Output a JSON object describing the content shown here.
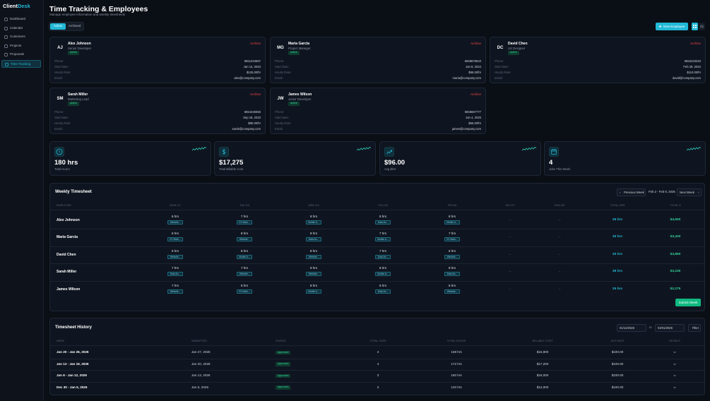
{
  "sidebar": {
    "brand_primary": "Client",
    "brand_accent": "Desk",
    "nav": [
      {
        "label": "Dashboard",
        "active": false
      },
      {
        "label": "Calendar",
        "active": false
      },
      {
        "label": "Customers",
        "active": false
      },
      {
        "label": "Projects",
        "active": false
      },
      {
        "label": "Proposals",
        "active": false
      },
      {
        "label": "Time Tracking",
        "active": true
      }
    ]
  },
  "header": {
    "title": "Time Tracking & Employees",
    "subtitle": "Manage employee information and weekly timesheets",
    "tabs": [
      "Active",
      "Archived"
    ],
    "new_button": "New Employee"
  },
  "employees": {
    "field_labels": {
      "phone": "Phone:",
      "start_date": "Start Date:",
      "hourly_rate": "Hourly Rate:",
      "email": "Email:"
    },
    "archive_label": "Archive",
    "list": [
      {
        "initials": "AJ",
        "name": "Alex Johnson",
        "role": "Senior Developer",
        "status": "active",
        "phone": "5551234567",
        "start_date": "Jan 14, 2023",
        "hourly_rate": "$125.00/hr",
        "email": "alex@company.com"
      },
      {
        "initials": "MG",
        "name": "Maria Garcia",
        "role": "Project Manager",
        "status": "active",
        "phone": "5559876543",
        "start_date": "Jan 8, 2024",
        "hourly_rate": "$95.00/hr",
        "email": "maria@company.com"
      },
      {
        "initials": "DC",
        "name": "David Chen",
        "role": "UX Designer",
        "status": "active",
        "phone": "5552223333",
        "start_date": "Feb 29, 2024",
        "hourly_rate": "$110.00/hr",
        "email": "david@company.com"
      },
      {
        "initials": "SM",
        "name": "Sarah Miller",
        "role": "Marketing Lead",
        "status": "active",
        "phone": "5554445555",
        "start_date": "Sep 18, 2023",
        "hourly_rate": "$85.00/hr",
        "email": "sarah@company.com"
      },
      {
        "initials": "JW",
        "name": "James Wilson",
        "role": "Junior Developer",
        "status": "active",
        "phone": "5556667777",
        "start_date": "Jan 4, 2025",
        "hourly_rate": "$65.00/hr",
        "email": "james@company.com"
      }
    ]
  },
  "stats": [
    {
      "value": "180 hrs",
      "label": "Total Hours"
    },
    {
      "value": "$17,275",
      "label": "Total Billable Cost"
    },
    {
      "value": "$96.00",
      "label": "Avg $/Hr"
    },
    {
      "value": "4",
      "label": "Jobs This Week"
    }
  ],
  "weekly": {
    "title": "Weekly Timesheet",
    "prev": "Previous Week",
    "range": "Feb 2 - Feb 8, 2026",
    "next": "Next Week",
    "submit": "Submit Week",
    "columns": [
      "EMPLOYEE",
      "MON 2/2",
      "TUE 2/3",
      "WED 2/4",
      "THU 2/5",
      "FRI 2/6",
      "SAT 2/7",
      "SUN 2/8",
      "TOTAL HRS",
      "TOTAL $"
    ],
    "rows": [
      {
        "employee": "Alex Johnson",
        "days": [
          {
            "hours": "5 hrs",
            "project": "Website..."
          },
          {
            "hours": "7 hrs",
            "project": "E1 Mark..."
          },
          {
            "hours": "8 hrs",
            "project": "Mobile A..."
          },
          {
            "hours": "8 hrs",
            "project": "Data An..."
          },
          {
            "hours": "8 hrs",
            "project": "Mobile A..."
          },
          "--",
          "--"
        ],
        "total_hours": "36 hrs",
        "total_cost": "$4,500"
      },
      {
        "employee": "Maria Garcia",
        "days": [
          {
            "hours": "6 hrs",
            "project": "E1 Mark..."
          },
          {
            "hours": "8 hrs",
            "project": "Website..."
          },
          {
            "hours": "8 hrs",
            "project": "Data An..."
          },
          {
            "hours": "7 hrs",
            "project": "Mobile A..."
          },
          {
            "hours": "7 hrs",
            "project": "E1 Mark..."
          },
          "--",
          "--"
        ],
        "total_hours": "36 hrs",
        "total_cost": "$3,420"
      },
      {
        "employee": "David Chen",
        "days": [
          {
            "hours": "6 hrs",
            "project": "Website..."
          },
          {
            "hours": "8 hrs",
            "project": "Mobile A..."
          },
          {
            "hours": "8 hrs",
            "project": "Website..."
          },
          {
            "hours": "7 hrs",
            "project": "Data An..."
          },
          {
            "hours": "6 hrs",
            "project": "Website..."
          },
          "--",
          "--"
        ],
        "total_hours": "35 hrs",
        "total_cost": "$3,850"
      },
      {
        "employee": "Sarah Miller",
        "days": [
          {
            "hours": "7 hrs",
            "project": "Data An..."
          },
          {
            "hours": "7 hrs",
            "project": "Website..."
          },
          {
            "hours": "8 hrs",
            "project": "Website..."
          },
          {
            "hours": "8 hrs",
            "project": "Mobile A..."
          },
          {
            "hours": "8 hrs",
            "project": "Data An..."
          },
          "--",
          "--"
        ],
        "total_hours": "38 hrs",
        "total_cost": "$3,230"
      },
      {
        "employee": "James Wilson",
        "days": [
          {
            "hours": "7 hrs",
            "project": "Website..."
          },
          {
            "hours": "8 hrs",
            "project": "E1 Mark..."
          },
          {
            "hours": "8 hrs",
            "project": "Mobile A..."
          },
          {
            "hours": "6 hrs",
            "project": "Data An..."
          },
          {
            "hours": "6 hrs",
            "project": "Website..."
          },
          "--",
          "--"
        ],
        "total_hours": "35 hrs",
        "total_cost": "$2,275"
      }
    ]
  },
  "history": {
    "title": "Timesheet History",
    "from": "01/12/2026",
    "to_label": "to",
    "to": "02/01/2026",
    "filter": "Filter",
    "columns": [
      "WEEK",
      "SUBMITTED",
      "STATUS",
      "TOTAL JOBS",
      "TOTAL HOURS",
      "BILLABLE COST",
      "AVG RATE",
      "DETAILS"
    ],
    "rows": [
      [
        "Jan 20 - Jan 26, 2026",
        "Jan 27, 2026",
        "Approved",
        "4",
        "168 hrs",
        "$16,800",
        "$100.00"
      ],
      [
        "Jan 13 - Jan 19, 2026",
        "Jan 20, 2026",
        "Approved",
        "4",
        "172 hrs",
        "$17,200",
        "$100.00"
      ],
      [
        "Jan 6 - Jan 12, 2026",
        "Jan 13, 2026",
        "Approved",
        "3",
        "160 hrs",
        "$16,000",
        "$100.00"
      ],
      [
        "Dec 30 - Jan 5, 2026",
        "Jan 6, 2026",
        "Approved",
        "2",
        "120 hrs",
        "$12,000",
        "$100.00"
      ]
    ]
  }
}
